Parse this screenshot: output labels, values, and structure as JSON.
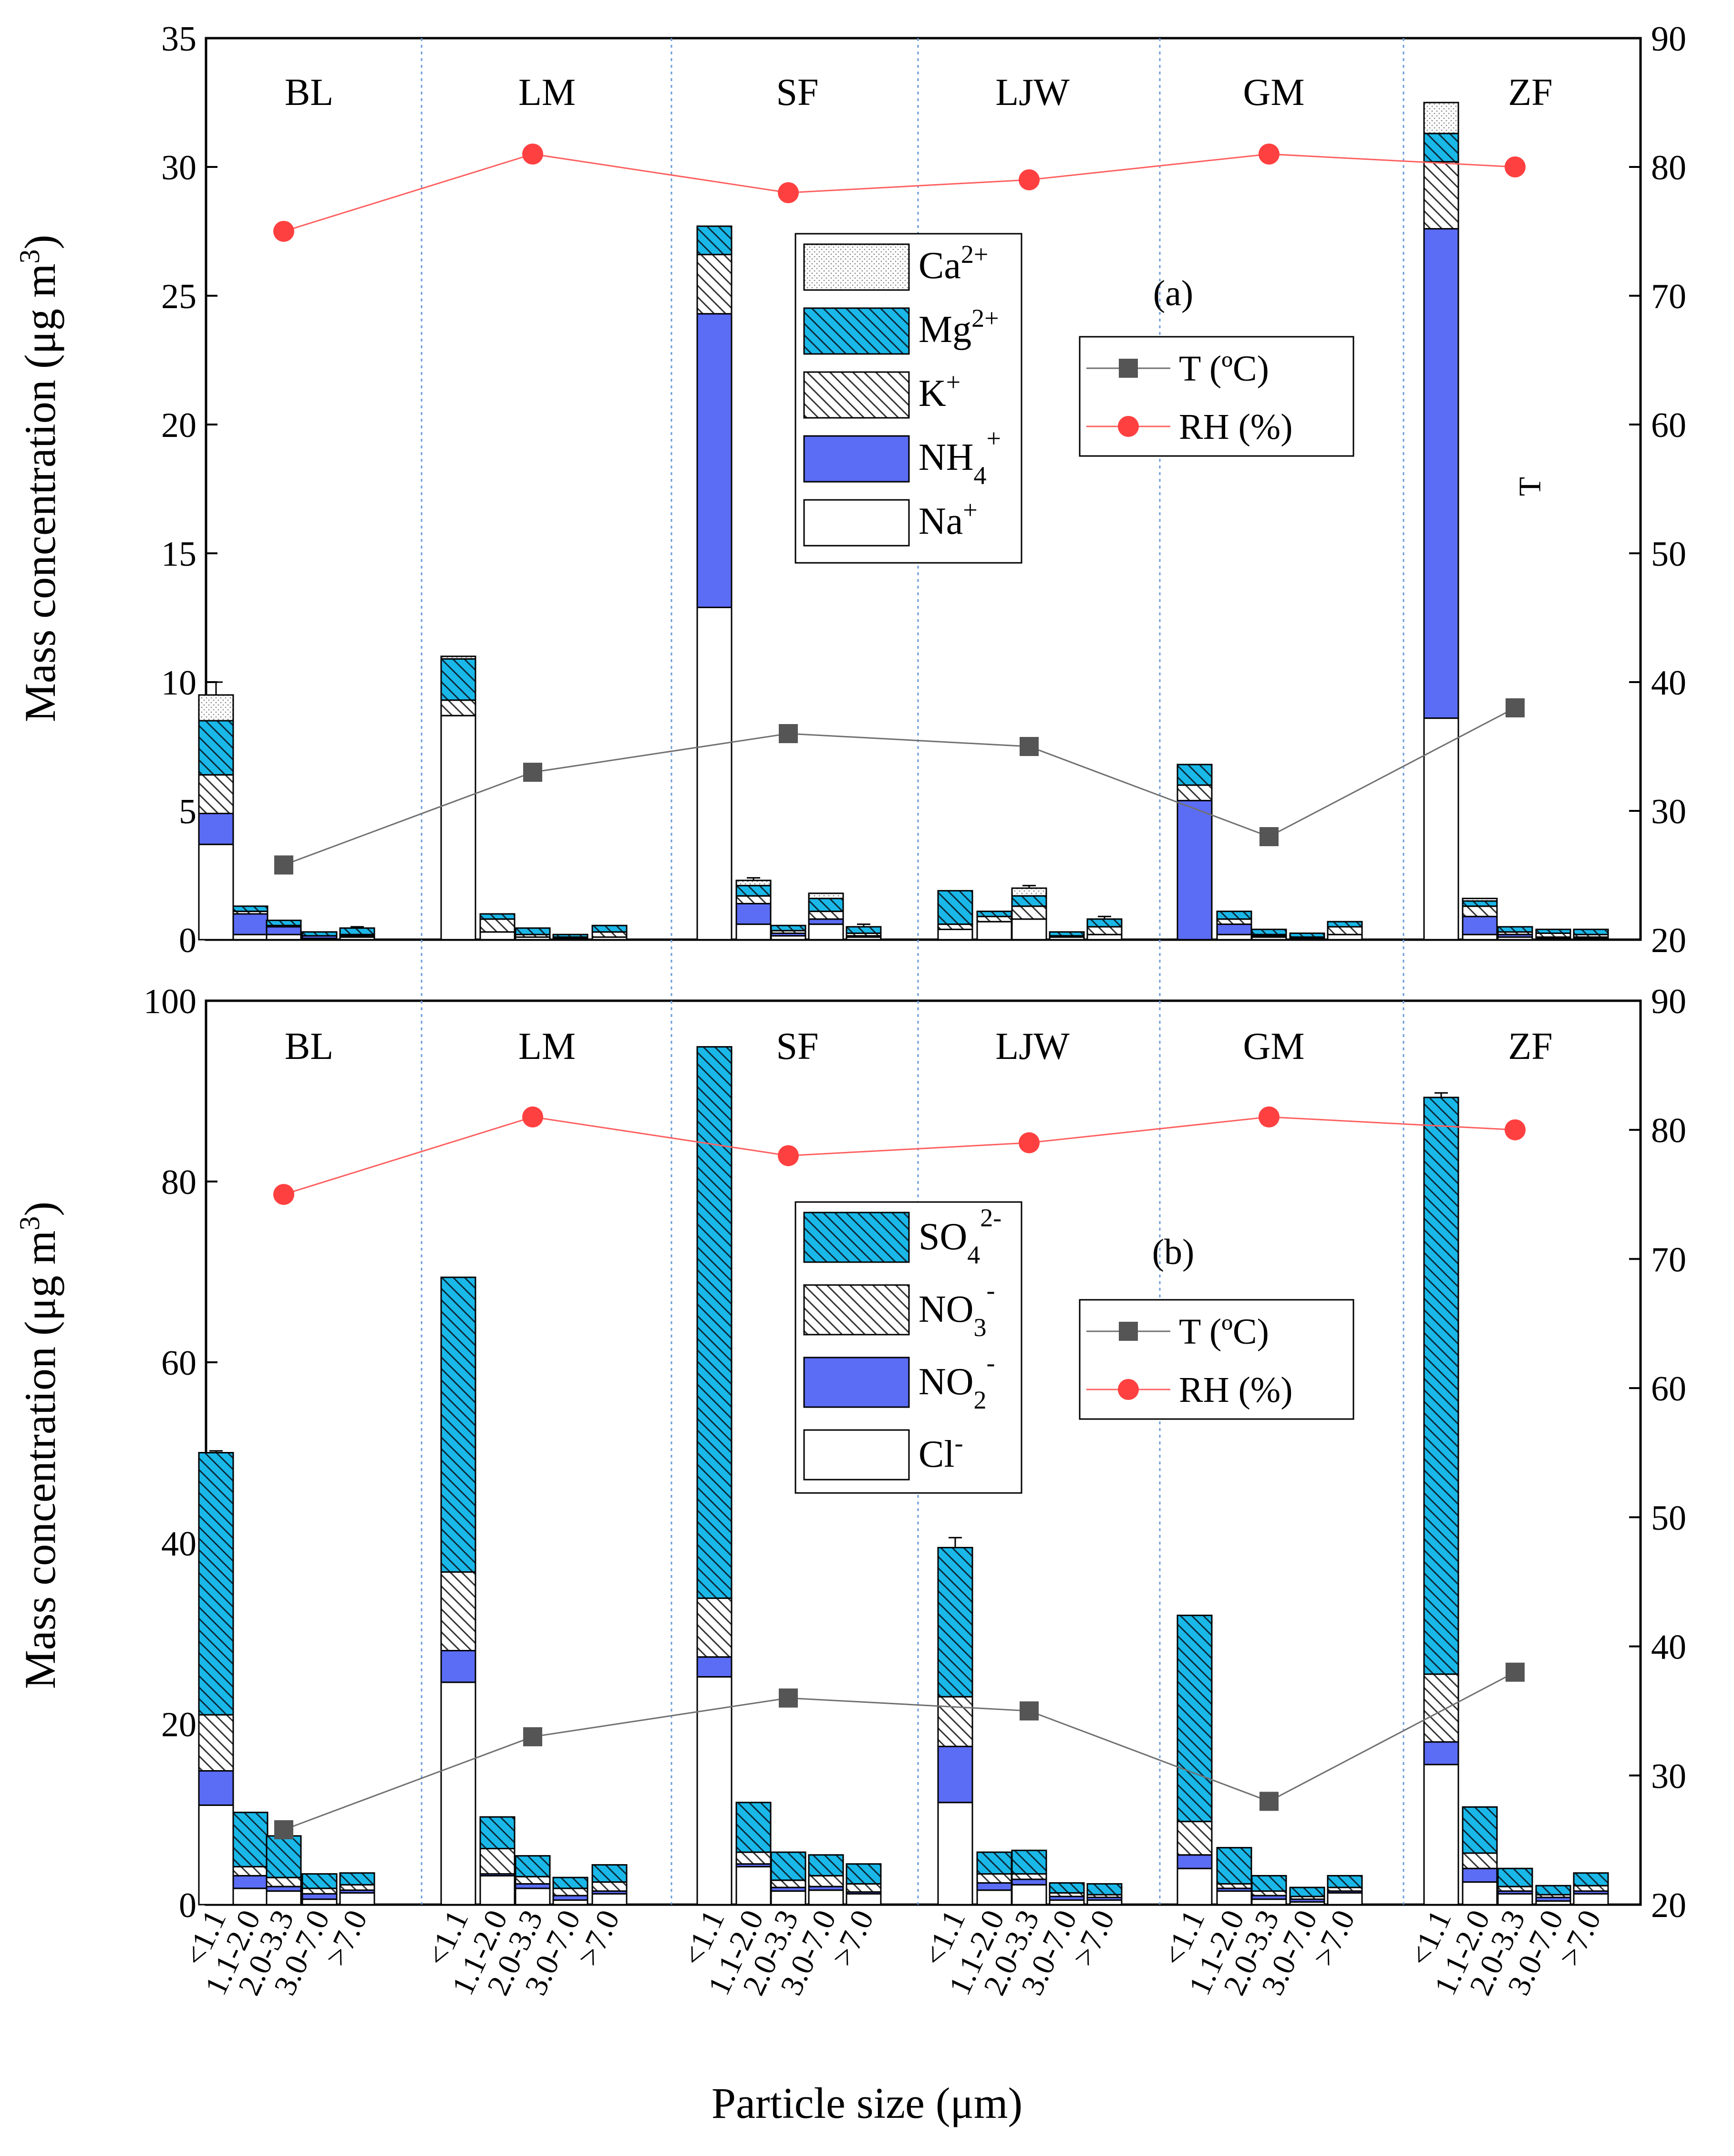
{
  "figure": {
    "x_axis_label": "Particle size (μm)",
    "y_axis_label_parts": [
      "Mass concentration (μg m",
      "3",
      ")"
    ],
    "size_bins": [
      "<1.1",
      "1.1-2.0",
      "2.0-3.3",
      "3.0-7.0",
      ">7.0"
    ],
    "sites": [
      "BL",
      "LM",
      "SF",
      "LJW",
      "GM",
      "ZF"
    ]
  },
  "colors": {
    "blue": "#5b6cf5",
    "cyan": "#1ab8e8",
    "gray_marker": "#555555",
    "red_marker": "#ff4040",
    "red_line": "#ff6060",
    "gray_line": "#707070",
    "separator": "#6a9ad8"
  },
  "chart_data": [
    {
      "type": "bar",
      "stacked": true,
      "panel_label": "(a)",
      "stray_text": "T",
      "ylim_left": [
        0,
        35
      ],
      "yticks_left": [
        0,
        5,
        10,
        15,
        20,
        25,
        30,
        35
      ],
      "ylim_right": [
        20,
        90
      ],
      "yticks_right": [
        20,
        30,
        40,
        50,
        60,
        70,
        80,
        90
      ],
      "legend": [
        {
          "name": "Ca",
          "sup": "2+",
          "sub": "",
          "fill": "dots"
        },
        {
          "name": "Mg",
          "sup": "2+",
          "sub": "",
          "fill": "cyan-hatch"
        },
        {
          "name": "K",
          "sup": "+",
          "sub": "",
          "fill": "white-hatch"
        },
        {
          "name": "NH",
          "sup": "+",
          "sub": "4",
          "fill": "blue"
        },
        {
          "name": "Na",
          "sup": "+",
          "sub": "",
          "fill": "white"
        }
      ],
      "line_legend": [
        {
          "label": "T   (ºC)",
          "marker": "square"
        },
        {
          "label": "RH (%)",
          "marker": "circle"
        }
      ],
      "series_order": [
        "Na+",
        "NH4+",
        "K+",
        "Mg2+",
        "Ca2+"
      ],
      "sites": [
        {
          "site": "BL",
          "bars": [
            [
              3.7,
              1.2,
              1.5,
              2.1,
              1.0
            ],
            [
              0.2,
              0.8,
              0.1,
              0.2,
              0.0
            ],
            [
              0.2,
              0.3,
              0.05,
              0.2,
              0.0
            ],
            [
              0.05,
              0.1,
              0.0,
              0.15,
              0.0
            ],
            [
              0.1,
              0.05,
              0.05,
              0.25,
              0.0
            ]
          ],
          "error_tops": [
            10.0,
            0,
            0.75,
            0,
            0.5
          ]
        },
        {
          "site": "LM",
          "bars": [
            [
              8.7,
              0.0,
              0.6,
              1.6,
              0.1
            ],
            [
              0.3,
              0.0,
              0.5,
              0.2,
              0.0
            ],
            [
              0.1,
              0.0,
              0.1,
              0.25,
              0.0
            ],
            [
              0.05,
              0.0,
              0.05,
              0.1,
              0.0
            ],
            [
              0.1,
              0.0,
              0.2,
              0.25,
              0.0
            ]
          ],
          "error_tops": [
            11.0,
            0.9,
            0,
            0,
            0
          ]
        },
        {
          "site": "SF",
          "bars": [
            [
              12.9,
              11.4,
              2.3,
              1.1,
              0.0
            ],
            [
              0.6,
              0.8,
              0.3,
              0.4,
              0.2
            ],
            [
              0.15,
              0.1,
              0.1,
              0.2,
              0.0
            ],
            [
              0.6,
              0.2,
              0.3,
              0.5,
              0.2
            ],
            [
              0.1,
              0.05,
              0.1,
              0.25,
              0.0
            ]
          ],
          "error_tops": [
            0,
            2.4,
            0,
            0,
            0.6
          ]
        },
        {
          "site": "LJW",
          "bars": [
            [
              0.4,
              0.0,
              0.2,
              1.3,
              0.0
            ],
            [
              0.7,
              0.0,
              0.2,
              0.2,
              0.0
            ],
            [
              0.8,
              0.0,
              0.5,
              0.4,
              0.3
            ],
            [
              0.1,
              0.0,
              0.05,
              0.15,
              0.0
            ],
            [
              0.2,
              0.0,
              0.3,
              0.3,
              0.0
            ]
          ],
          "error_tops": [
            0,
            0,
            2.1,
            0,
            0.9
          ]
        },
        {
          "site": "GM",
          "bars": [
            [
              0.0,
              5.4,
              0.6,
              0.8,
              0.0
            ],
            [
              0.2,
              0.4,
              0.2,
              0.3,
              0.0
            ],
            [
              0.1,
              0.05,
              0.05,
              0.2,
              0.0
            ],
            [
              0.05,
              0.0,
              0.05,
              0.15,
              0.0
            ],
            [
              0.2,
              0.0,
              0.3,
              0.2,
              0.0
            ]
          ],
          "error_tops": [
            0,
            0,
            0,
            0,
            0
          ]
        },
        {
          "site": "ZF",
          "bars": [
            [
              8.6,
              19.0,
              2.6,
              1.1,
              1.2
            ],
            [
              0.2,
              0.7,
              0.4,
              0.2,
              0.1
            ],
            [
              0.1,
              0.1,
              0.1,
              0.2,
              0.0
            ],
            [
              0.05,
              0.05,
              0.15,
              0.15,
              0.0
            ],
            [
              0.05,
              0.05,
              0.1,
              0.2,
              0.0
            ]
          ],
          "error_tops": [
            9.4,
            0,
            0,
            0,
            0
          ]
        }
      ],
      "T": [
        25.8,
        33.0,
        36.0,
        35.0,
        28.0,
        38.0
      ],
      "RH": [
        75.0,
        81.0,
        78.0,
        79.0,
        81.0,
        80.0
      ]
    },
    {
      "type": "bar",
      "stacked": true,
      "panel_label": "(b)",
      "ylim_left": [
        0,
        100
      ],
      "yticks_left": [
        0,
        20,
        40,
        60,
        80,
        100
      ],
      "ylim_right": [
        20,
        90
      ],
      "yticks_right": [
        20,
        30,
        40,
        50,
        60,
        70,
        80,
        90
      ],
      "legend": [
        {
          "name": "SO",
          "sup": "2-",
          "sub": "4",
          "fill": "cyan-hatch"
        },
        {
          "name": "NO",
          "sup": "-",
          "sub": "3",
          "fill": "white-hatch"
        },
        {
          "name": "NO",
          "sup": "-",
          "sub": "2",
          "fill": "blue"
        },
        {
          "name": "Cl",
          "sup": "-",
          "sub": "",
          "fill": "white"
        }
      ],
      "line_legend": [
        {
          "label": "T   (ºC)",
          "marker": "square"
        },
        {
          "label": "RH (%)",
          "marker": "circle"
        }
      ],
      "series_order": [
        "Cl-",
        "NO2-",
        "NO3-",
        "SO42-"
      ],
      "sites": [
        {
          "site": "BL",
          "bars": [
            [
              11.0,
              3.8,
              6.2,
              29.0
            ],
            [
              1.8,
              1.4,
              1.0,
              6.0
            ],
            [
              1.5,
              0.5,
              1.0,
              4.6
            ],
            [
              0.6,
              0.6,
              0.6,
              1.6
            ],
            [
              1.3,
              0.3,
              0.6,
              1.3
            ]
          ],
          "error_tops": [
            50.2,
            0,
            0,
            0,
            0
          ]
        },
        {
          "site": "LM",
          "bars": [
            [
              24.6,
              3.5,
              8.7,
              32.6
            ],
            [
              3.2,
              0.2,
              2.8,
              3.5
            ],
            [
              1.8,
              0.5,
              0.8,
              2.3
            ],
            [
              0.5,
              0.5,
              0.8,
              1.2
            ],
            [
              1.2,
              0.3,
              1.0,
              1.9
            ]
          ],
          "error_tops": [
            0,
            0,
            0,
            0,
            0
          ]
        },
        {
          "site": "SF",
          "bars": [
            [
              25.2,
              2.2,
              6.5,
              61.0
            ],
            [
              4.2,
              0.3,
              1.3,
              5.5
            ],
            [
              1.5,
              0.4,
              0.8,
              3.1
            ],
            [
              1.6,
              0.4,
              1.2,
              2.3
            ],
            [
              1.2,
              0.2,
              0.9,
              2.2
            ]
          ],
          "error_tops": [
            38.5,
            0,
            0,
            0,
            0
          ]
        },
        {
          "site": "LJW",
          "bars": [
            [
              11.3,
              6.2,
              5.5,
              16.5
            ],
            [
              1.6,
              0.8,
              1.0,
              2.4
            ],
            [
              2.2,
              0.6,
              0.6,
              2.6
            ],
            [
              0.5,
              0.4,
              0.4,
              1.1
            ],
            [
              0.5,
              0.3,
              0.3,
              1.2
            ]
          ],
          "error_tops": [
            40.6,
            0,
            0,
            0,
            0
          ]
        },
        {
          "site": "GM",
          "bars": [
            [
              4.0,
              1.5,
              3.7,
              22.8
            ],
            [
              1.5,
              0.3,
              0.5,
              4.0
            ],
            [
              0.6,
              0.4,
              0.5,
              1.7
            ],
            [
              0.3,
              0.3,
              0.3,
              1.0
            ],
            [
              1.3,
              0.2,
              0.4,
              1.3
            ]
          ],
          "error_tops": [
            0,
            0,
            0,
            0,
            0
          ]
        },
        {
          "site": "ZF",
          "bars": [
            [
              15.5,
              2.5,
              7.5,
              63.8
            ],
            [
              2.5,
              1.5,
              1.7,
              5.1
            ],
            [
              1.2,
              0.3,
              0.5,
              2.0
            ],
            [
              0.4,
              0.4,
              0.3,
              1.0
            ],
            [
              1.2,
              0.3,
              0.6,
              1.4
            ]
          ],
          "error_tops": [
            89.8,
            0,
            0,
            0,
            0
          ]
        }
      ],
      "T": [
        25.8,
        33.0,
        36.0,
        35.0,
        28.0,
        38.0
      ],
      "RH": [
        75.0,
        81.0,
        78.0,
        79.0,
        81.0,
        80.0
      ]
    }
  ]
}
